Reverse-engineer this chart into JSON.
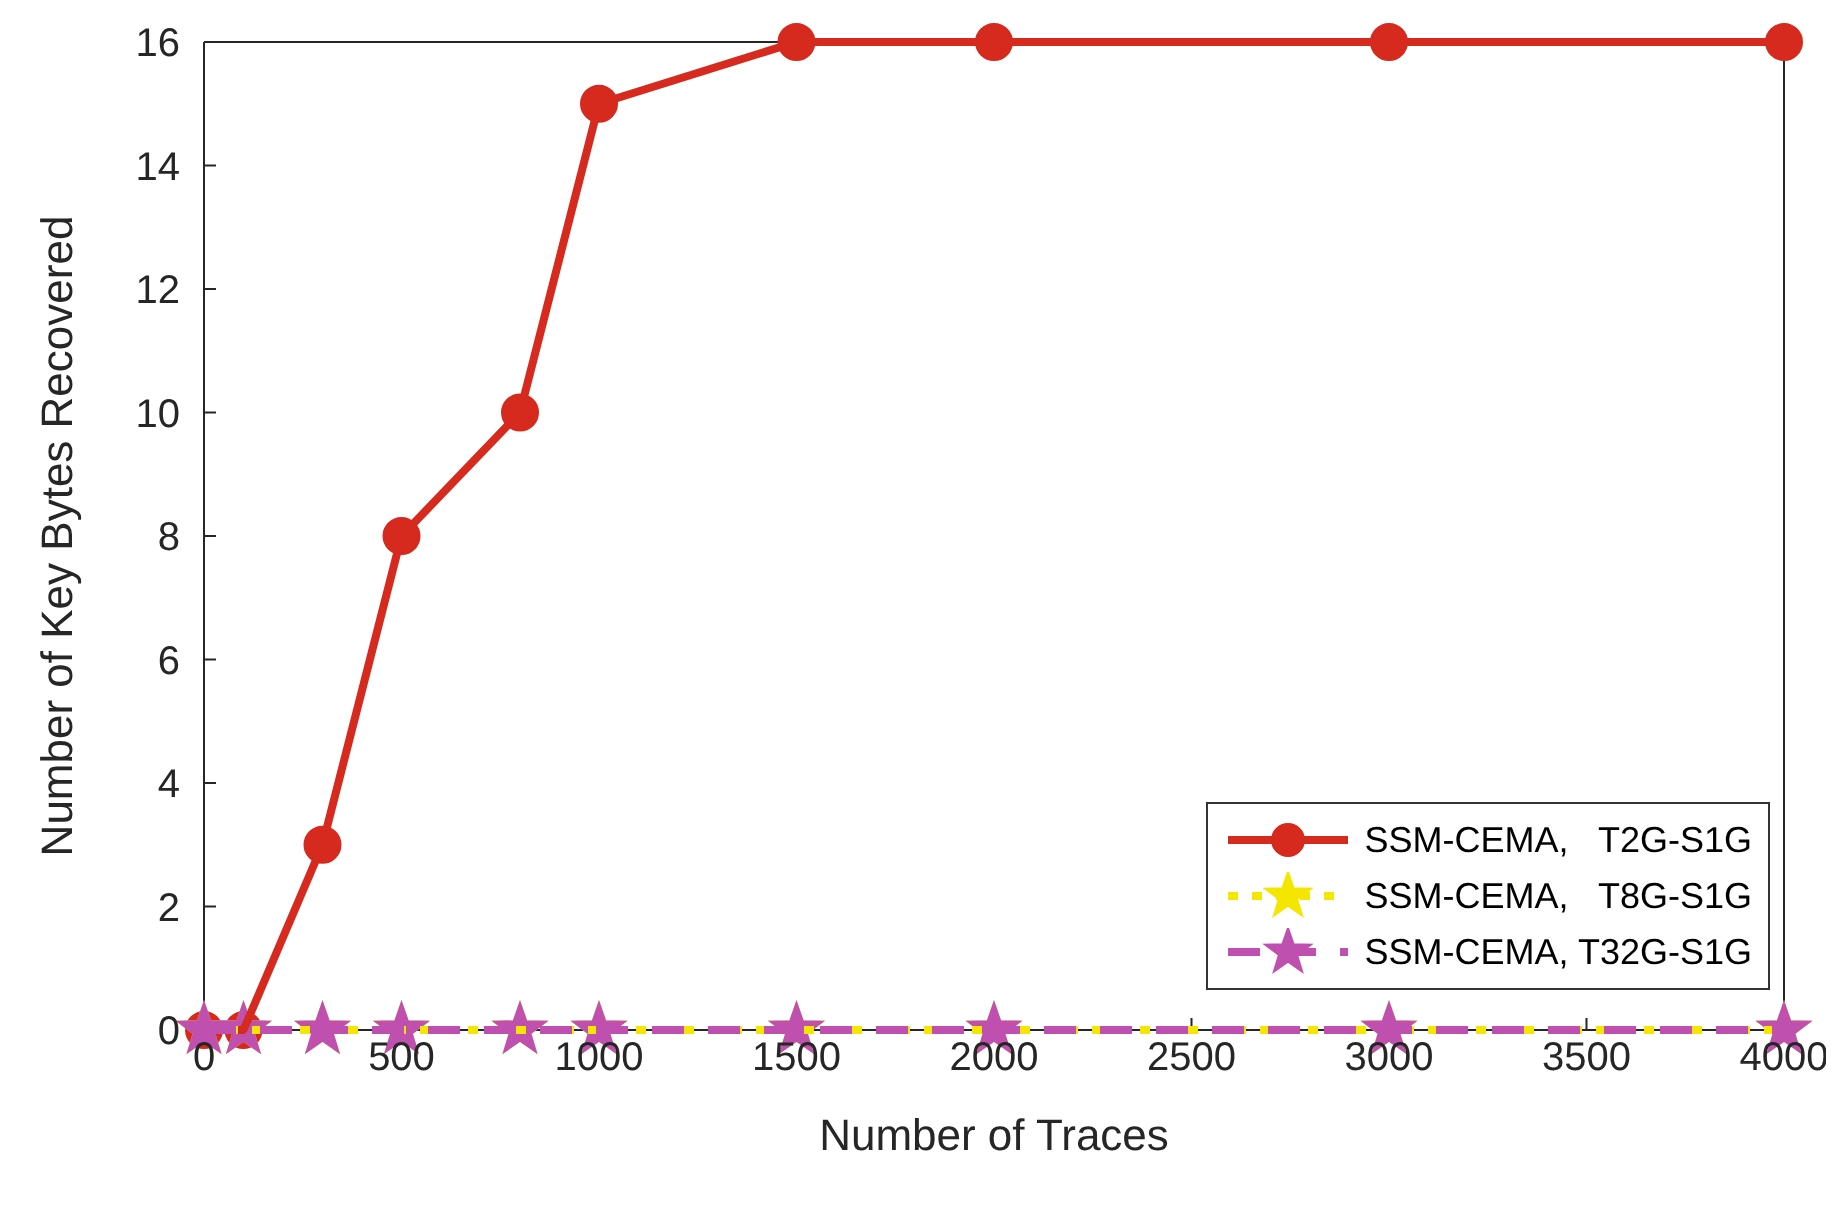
{
  "chart_data": {
    "type": "line",
    "xlabel": "Number of Traces",
    "ylabel": "Number of Key Bytes Recovered",
    "x": [
      0,
      100,
      300,
      500,
      800,
      1000,
      1500,
      2000,
      3000,
      4000
    ],
    "series": [
      {
        "name": "SSM-CEMA,   T2G-S1G",
        "color": "#d62a1e",
        "values": [
          0,
          0,
          3,
          8,
          10,
          15,
          16,
          16,
          16,
          16
        ],
        "marker": "circle",
        "line_style": "solid"
      },
      {
        "name": "SSM-CEMA,   T8G-S1G",
        "color": "#f5e600",
        "values": [
          0,
          0,
          0,
          0,
          0,
          0,
          0,
          0,
          0,
          0
        ],
        "marker": "star",
        "line_style": "dotted"
      },
      {
        "name": "SSM-CEMA, T32G-S1G",
        "color": "#c050b0",
        "values": [
          0,
          0,
          0,
          0,
          0,
          0,
          0,
          0,
          0,
          0
        ],
        "marker": "star",
        "line_style": "dashed"
      }
    ],
    "xlim": [
      0,
      4000
    ],
    "xticks": [
      0,
      500,
      1000,
      1500,
      2000,
      2500,
      3000,
      3500,
      4000
    ],
    "ylim": [
      0,
      16
    ],
    "yticks": [
      0,
      2,
      4,
      6,
      8,
      10,
      12,
      14,
      16
    ],
    "grid": false,
    "legend": "bottom right"
  }
}
